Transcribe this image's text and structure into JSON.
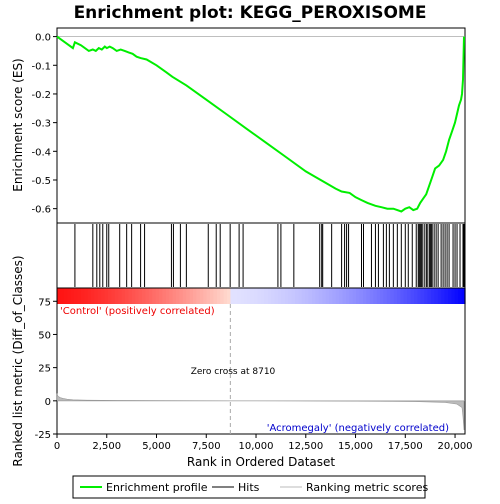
{
  "chart_data": {
    "type": "line",
    "title": "Enrichment plot: KEGG_PEROXISOME",
    "top_panel": {
      "ylabel": "Enrichment score (ES)",
      "ylim": [
        -0.65,
        0.03
      ],
      "yticks": [
        0.0,
        -0.1,
        -0.2,
        -0.3,
        -0.4,
        -0.5,
        -0.6
      ],
      "ytick_labels": [
        "0.0",
        "-0.1",
        "-0.2",
        "-0.3",
        "-0.4",
        "-0.5",
        "-0.6"
      ],
      "series": [
        {
          "color": "#00ee00",
          "x": [
            0,
            500,
            800,
            900,
            1200,
            1600,
            1800,
            1950,
            2100,
            2250,
            2400,
            2500,
            2650,
            2800,
            3000,
            3200,
            3400,
            3600,
            3800,
            4000,
            4200,
            4500,
            5000,
            5500,
            5800,
            6500,
            7500,
            8500,
            9500,
            10500,
            11500,
            12500,
            13000,
            13500,
            14000,
            14300,
            14700,
            15000,
            15300,
            15600,
            16000,
            16300,
            16600,
            16900,
            17100,
            17300,
            17500,
            17700,
            17900,
            18100,
            18250,
            18400,
            18550,
            18700,
            18850,
            19000,
            19200,
            19400,
            19550,
            19700,
            19850,
            20000,
            20100,
            20200,
            20300,
            20350,
            20400,
            20450
          ],
          "y": [
            0.0,
            -0.025,
            -0.04,
            -0.02,
            -0.03,
            -0.05,
            -0.045,
            -0.05,
            -0.04,
            -0.045,
            -0.035,
            -0.04,
            -0.035,
            -0.04,
            -0.05,
            -0.045,
            -0.05,
            -0.055,
            -0.06,
            -0.07,
            -0.075,
            -0.08,
            -0.1,
            -0.125,
            -0.14,
            -0.17,
            -0.22,
            -0.27,
            -0.32,
            -0.37,
            -0.42,
            -0.47,
            -0.49,
            -0.51,
            -0.53,
            -0.54,
            -0.545,
            -0.56,
            -0.57,
            -0.58,
            -0.59,
            -0.595,
            -0.6,
            -0.6,
            -0.605,
            -0.61,
            -0.6,
            -0.595,
            -0.605,
            -0.6,
            -0.58,
            -0.565,
            -0.55,
            -0.52,
            -0.49,
            -0.46,
            -0.45,
            -0.43,
            -0.4,
            -0.36,
            -0.33,
            -0.3,
            -0.27,
            -0.24,
            -0.22,
            -0.2,
            -0.15,
            0.0
          ]
        }
      ],
      "hits": [
        900,
        1800,
        2000,
        2150,
        2300,
        2500,
        2600,
        3150,
        3500,
        3750,
        4200,
        4400,
        5750,
        5850,
        6200,
        6500,
        7600,
        8000,
        8200,
        8700,
        9150,
        9350,
        11100,
        11250,
        11900,
        13200,
        13300,
        13350,
        13800,
        14300,
        14450,
        14550,
        14650,
        15300,
        15400,
        15800,
        16000,
        16150,
        16400,
        16550,
        16700,
        16900,
        17100,
        17300,
        17500,
        17650,
        17850,
        18050,
        18150,
        18200,
        18250,
        18300,
        18350,
        18450,
        18550,
        18600,
        18700,
        18750,
        18800,
        18850,
        18950,
        19050,
        19150,
        19300,
        19400,
        19500,
        19600,
        19700,
        19900,
        20000,
        20100,
        20250,
        20400,
        20450
      ]
    },
    "bottom_panel": {
      "ylabel": "Ranked list metric (Diff_of_Classes)",
      "xlabel": "Rank in Ordered Dataset",
      "ylim": [
        -25,
        85
      ],
      "yticks": [
        75,
        50,
        25,
        0,
        -25
      ],
      "ytick_labels": [
        "75",
        "50",
        "25",
        "0",
        "-25"
      ],
      "metric_x": [
        0,
        50,
        150,
        300,
        500,
        800,
        1500,
        3000,
        5000,
        8710,
        12000,
        15000,
        18000,
        19500,
        20100,
        20350,
        20400,
        20450
      ],
      "metric_y": [
        5.5,
        3.5,
        2.5,
        1.8,
        1.2,
        0.8,
        0.5,
        0.3,
        0.15,
        0.0,
        -0.15,
        -0.3,
        -0.6,
        -1.2,
        -2.5,
        -5.0,
        -12.0,
        -22.0
      ],
      "zero_cross_x": 8710,
      "zero_cross_label": "Zero cross at 8710",
      "positive_label": "'Control' (positively correlated)",
      "negative_label": "'Acromegaly' (negatively correlated)"
    },
    "xlim": [
      0,
      20500
    ],
    "xticks": [
      0,
      2500,
      5000,
      7500,
      10000,
      12500,
      15000,
      17500,
      20000
    ],
    "xtick_labels": [
      "0",
      "2,500",
      "5,000",
      "7,500",
      "10,000",
      "12,500",
      "15,000",
      "17,500",
      "20,000"
    ],
    "legend": {
      "placement": "bottom",
      "entries": [
        {
          "label": "Enrichment profile",
          "color": "#00ee00"
        },
        {
          "label": "Hits",
          "color": "#000000"
        },
        {
          "label": "Ranking metric scores",
          "color": "#bbbbbb"
        }
      ]
    },
    "colors": {
      "profile": "#00ee00",
      "positive": "#ee0000",
      "negative": "#0000cc",
      "metric": "#bbbbbb",
      "zero_line": "#aaaaaa"
    }
  }
}
